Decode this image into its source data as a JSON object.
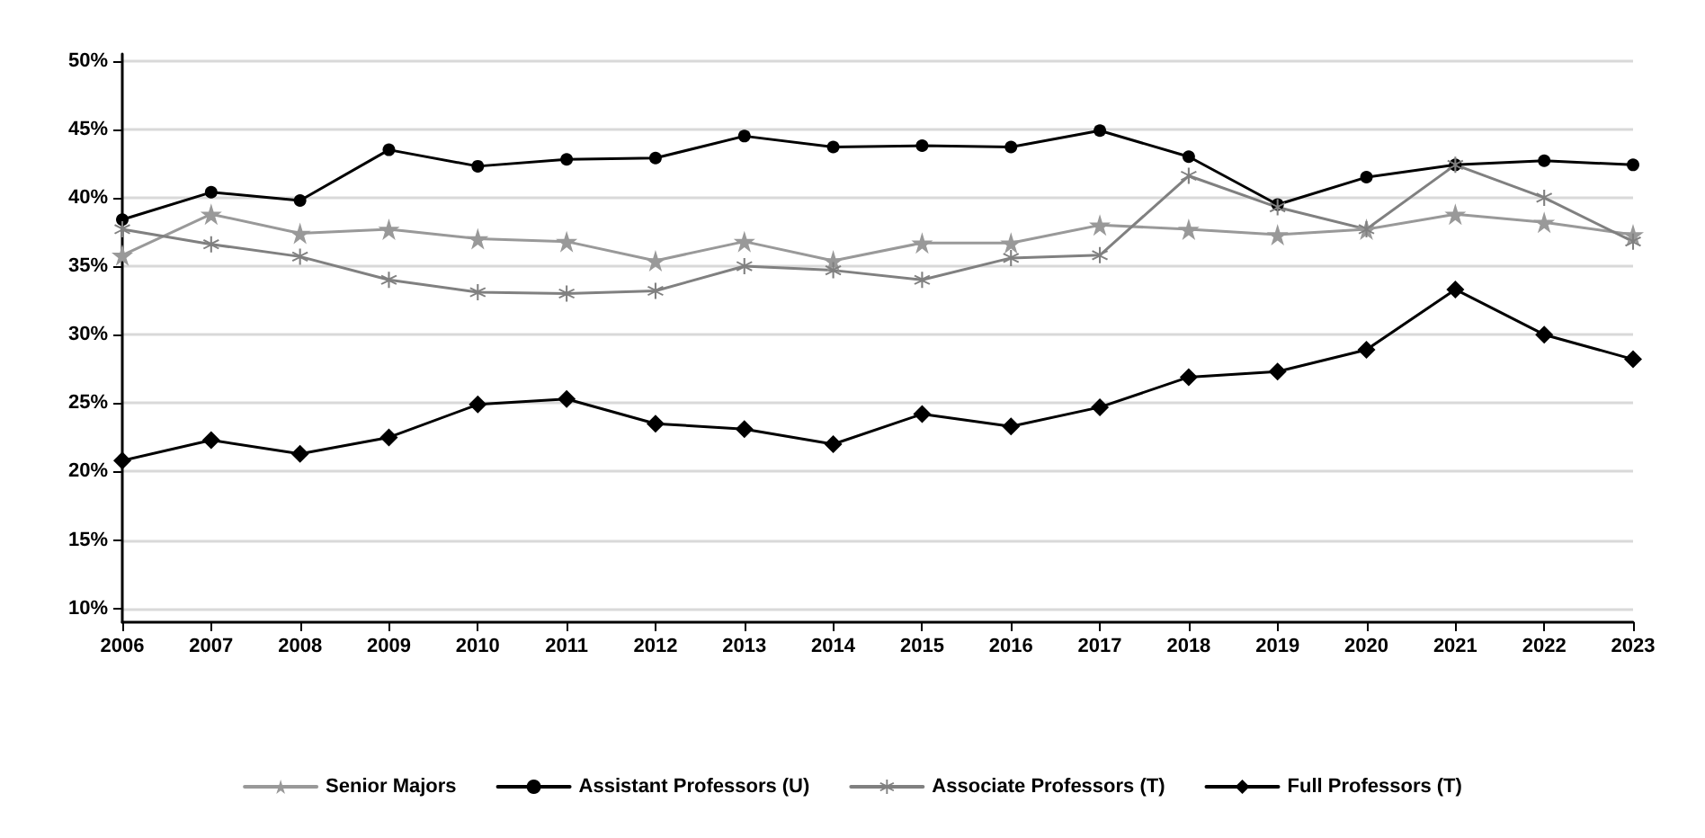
{
  "chart_data": {
    "type": "line",
    "categories": [
      "2006",
      "2007",
      "2008",
      "2009",
      "2010",
      "2011",
      "2012",
      "2013",
      "2014",
      "2015",
      "2016",
      "2017",
      "2018",
      "2019",
      "2020",
      "2021",
      "2022",
      "2023"
    ],
    "series": [
      {
        "name": "Senior Majors",
        "color": "#999999",
        "marker": "star",
        "values": [
          35.8,
          38.8,
          37.4,
          37.7,
          37.0,
          36.8,
          35.4,
          36.8,
          35.4,
          36.7,
          36.7,
          38.0,
          37.7,
          37.3,
          37.7,
          38.8,
          38.2,
          37.3
        ]
      },
      {
        "name": "Assistant Professors (U)",
        "color": "#000000",
        "marker": "circle",
        "values": [
          38.4,
          40.4,
          39.8,
          43.5,
          42.3,
          42.8,
          42.9,
          44.5,
          43.7,
          43.8,
          43.7,
          44.9,
          43.0,
          39.5,
          41.5,
          42.4,
          42.7,
          42.4
        ]
      },
      {
        "name": "Associate Professors (T)",
        "color": "#808080",
        "marker": "cross",
        "values": [
          37.7,
          36.6,
          35.7,
          34.0,
          33.1,
          33.0,
          33.2,
          35.0,
          34.7,
          34.0,
          35.6,
          35.8,
          41.6,
          39.3,
          37.7,
          42.4,
          40.0,
          36.8
        ]
      },
      {
        "name": "Full Professors (T)",
        "color": "#000000",
        "marker": "diamond",
        "values": [
          20.8,
          22.3,
          21.3,
          22.5,
          24.9,
          25.3,
          23.5,
          23.1,
          22.0,
          24.2,
          23.3,
          24.7,
          26.9,
          27.3,
          28.9,
          33.3,
          30.0,
          28.2
        ]
      }
    ],
    "ylim": [
      9,
      50.5
    ],
    "yticks": [
      {
        "value": 10,
        "label": "10%"
      },
      {
        "value": 15,
        "label": "15%"
      },
      {
        "value": 20,
        "label": "20%"
      },
      {
        "value": 25,
        "label": "25%"
      },
      {
        "value": 30,
        "label": "30%"
      },
      {
        "value": 35,
        "label": "35%"
      },
      {
        "value": 40,
        "label": "40%"
      },
      {
        "value": 45,
        "label": "45%"
      },
      {
        "value": 50,
        "label": "50%"
      }
    ],
    "grid": "y",
    "legend": "bottom",
    "line_style": "solid"
  }
}
